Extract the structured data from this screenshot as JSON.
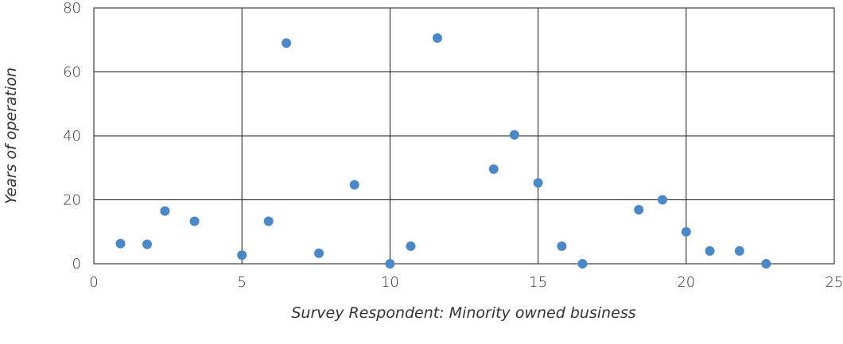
{
  "chart_data": {
    "type": "scatter",
    "title": "",
    "xlabel": "Survey Respondent: Minority owned business",
    "ylabel": "Years of operation",
    "xlim": [
      0,
      25
    ],
    "ylim": [
      0,
      80
    ],
    "x_ticks": [
      0,
      5,
      10,
      15,
      20,
      25
    ],
    "y_ticks": [
      0,
      20,
      40,
      60,
      80
    ],
    "grid": true,
    "legend": "none",
    "marker_color": "#4a88c7",
    "series": [
      {
        "points": [
          {
            "x": 0.9,
            "y": 6.3
          },
          {
            "x": 1.8,
            "y": 6.1
          },
          {
            "x": 2.4,
            "y": 16.5
          },
          {
            "x": 3.4,
            "y": 13.3
          },
          {
            "x": 5.0,
            "y": 2.7
          },
          {
            "x": 5.9,
            "y": 13.3
          },
          {
            "x": 6.5,
            "y": 69.0
          },
          {
            "x": 7.6,
            "y": 3.3
          },
          {
            "x": 8.8,
            "y": 24.7
          },
          {
            "x": 10.0,
            "y": 0.0
          },
          {
            "x": 10.7,
            "y": 5.5
          },
          {
            "x": 11.6,
            "y": 70.6
          },
          {
            "x": 13.5,
            "y": 29.6
          },
          {
            "x": 14.2,
            "y": 40.3
          },
          {
            "x": 15.0,
            "y": 25.3
          },
          {
            "x": 15.8,
            "y": 5.5
          },
          {
            "x": 16.5,
            "y": 0.0
          },
          {
            "x": 18.4,
            "y": 16.9
          },
          {
            "x": 19.2,
            "y": 20.0
          },
          {
            "x": 20.0,
            "y": 10.0
          },
          {
            "x": 20.8,
            "y": 4.0
          },
          {
            "x": 21.8,
            "y": 4.0
          },
          {
            "x": 22.7,
            "y": 0.0
          }
        ]
      }
    ]
  }
}
